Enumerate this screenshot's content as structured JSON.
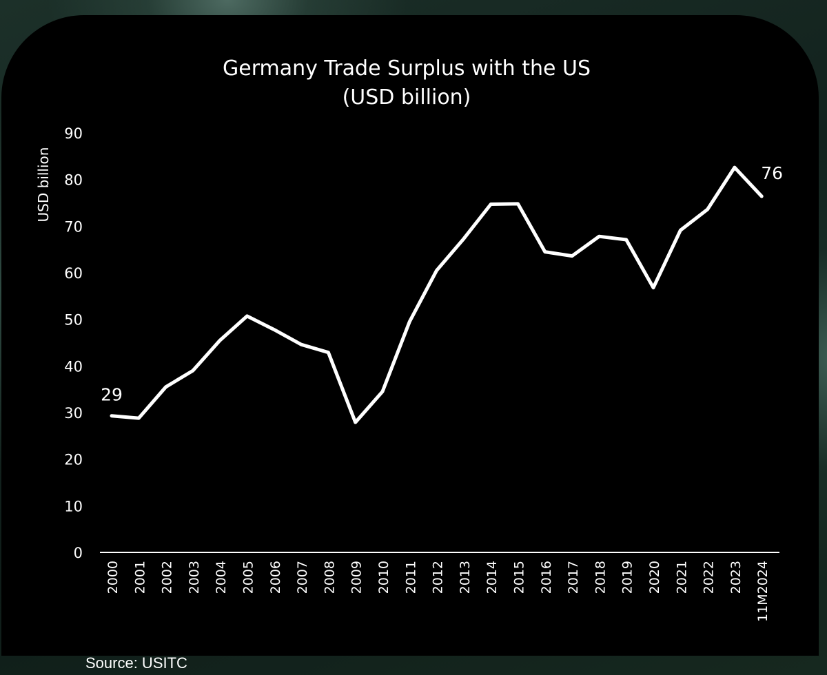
{
  "chart_data": {
    "type": "line",
    "title": "Germany Trade Surplus with the US",
    "subtitle": "(USD billion)",
    "xlabel": "",
    "ylabel": "USD billion",
    "ylim": [
      0,
      90
    ],
    "yticks": [
      0,
      10,
      20,
      30,
      40,
      50,
      60,
      70,
      80,
      90
    ],
    "categories": [
      "2000",
      "2001",
      "2002",
      "2003",
      "2004",
      "2005",
      "2006",
      "2007",
      "2008",
      "2009",
      "2010",
      "2011",
      "2012",
      "2013",
      "2014",
      "2015",
      "2016",
      "2017",
      "2018",
      "2019",
      "2020",
      "2021",
      "2022",
      "2023",
      "11M2024"
    ],
    "series": [
      {
        "name": "Germany Trade Surplus with the US",
        "values": [
          29.3,
          28.8,
          35.5,
          39.0,
          45.5,
          50.7,
          47.8,
          44.6,
          42.9,
          27.9,
          34.5,
          49.5,
          60.5,
          67.3,
          74.7,
          74.8,
          64.5,
          63.6,
          67.8,
          67.1,
          56.8,
          69.1,
          73.6,
          82.6,
          76.4
        ],
        "color": "#ffffff"
      }
    ],
    "annotations": [
      {
        "label": "29",
        "index": 0
      },
      {
        "label": "76",
        "index": 24
      }
    ],
    "grid": false,
    "legend": "none"
  },
  "source": "Source: USITC",
  "colors": {
    "card_background": "#000000",
    "text": "#ffffff",
    "page_background": "#142520"
  }
}
